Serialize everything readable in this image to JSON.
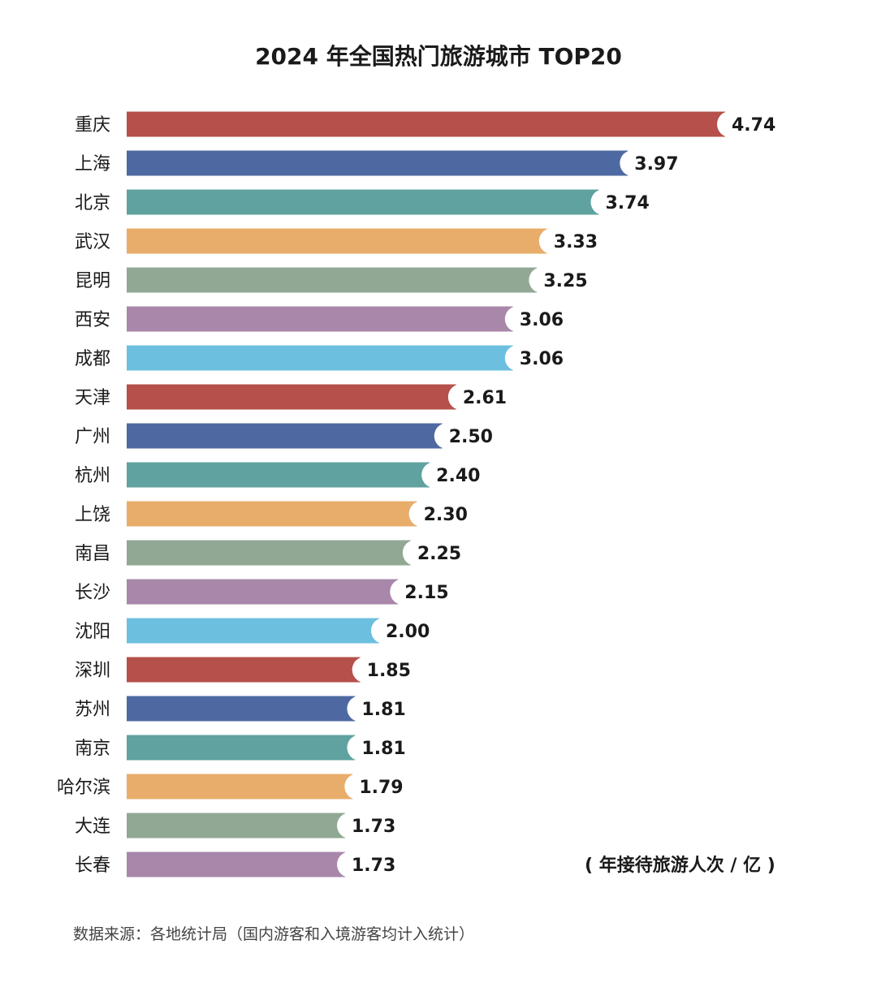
{
  "chart_data": {
    "type": "bar",
    "orientation": "horizontal",
    "title": "2024 年全国热门旅游城市 TOP20",
    "categories": [
      "重庆",
      "上海",
      "北京",
      "武汉",
      "昆明",
      "西安",
      "成都",
      "天津",
      "广州",
      "杭州",
      "上饶",
      "南昌",
      "长沙",
      "沈阳",
      "深圳",
      "苏州",
      "南京",
      "哈尔滨",
      "大连",
      "长春"
    ],
    "values": [
      4.74,
      3.97,
      3.74,
      3.33,
      3.25,
      3.06,
      3.06,
      2.61,
      2.5,
      2.4,
      2.3,
      2.25,
      2.15,
      2.0,
      1.85,
      1.81,
      1.81,
      1.79,
      1.73,
      1.73
    ],
    "value_labels": [
      "4.74",
      "3.97",
      "3.74",
      "3.33",
      "3.25",
      "3.06",
      "3.06",
      "2.61",
      "2.50",
      "2.40",
      "2.30",
      "2.25",
      "2.15",
      "2.00",
      "1.85",
      "1.81",
      "1.81",
      "1.79",
      "1.73",
      "1.73"
    ],
    "bar_colors": [
      "#b5504a",
      "#4e69a1",
      "#5fa29f",
      "#e8ad6b",
      "#91a894",
      "#a887aa",
      "#6dbfdf"
    ],
    "xlim": [
      0,
      4.74
    ],
    "grid": false,
    "legend": "none",
    "unit_label": "( 年接待旅游人次 / 亿 )"
  },
  "source": "数据来源：各地统计局（国内游客和入境游客均计入统计）"
}
